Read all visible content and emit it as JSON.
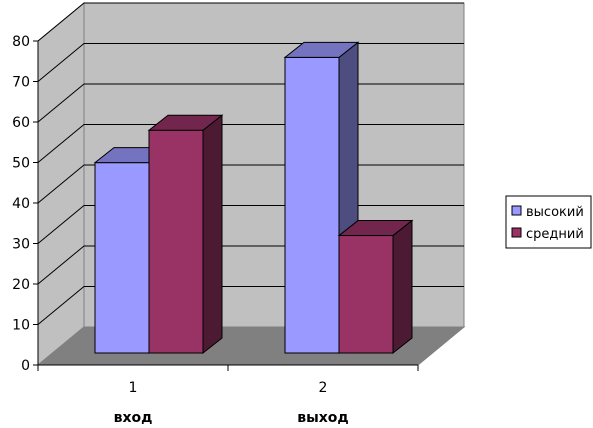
{
  "chart_data": {
    "type": "bar",
    "categories": [
      "1",
      "2"
    ],
    "group_labels": [
      "вход",
      "выход"
    ],
    "series": [
      {
        "name": "высокий",
        "values": [
          47,
          73
        ],
        "color": "#9999ff",
        "side_color": "#4d4d80",
        "top_color": "#7373bf"
      },
      {
        "name": "средний",
        "values": [
          55,
          29
        ],
        "color": "#993366",
        "side_color": "#4d1a33",
        "top_color": "#73264d"
      }
    ],
    "ylim": [
      0,
      80
    ],
    "yticks": [
      "0",
      "10",
      "20",
      "30",
      "40",
      "50",
      "60",
      "70",
      "80"
    ],
    "grid": true,
    "legend": "right",
    "style": "3d-clustered-column",
    "wall_color": "#c0c0c0",
    "floor_color": "#808080"
  }
}
